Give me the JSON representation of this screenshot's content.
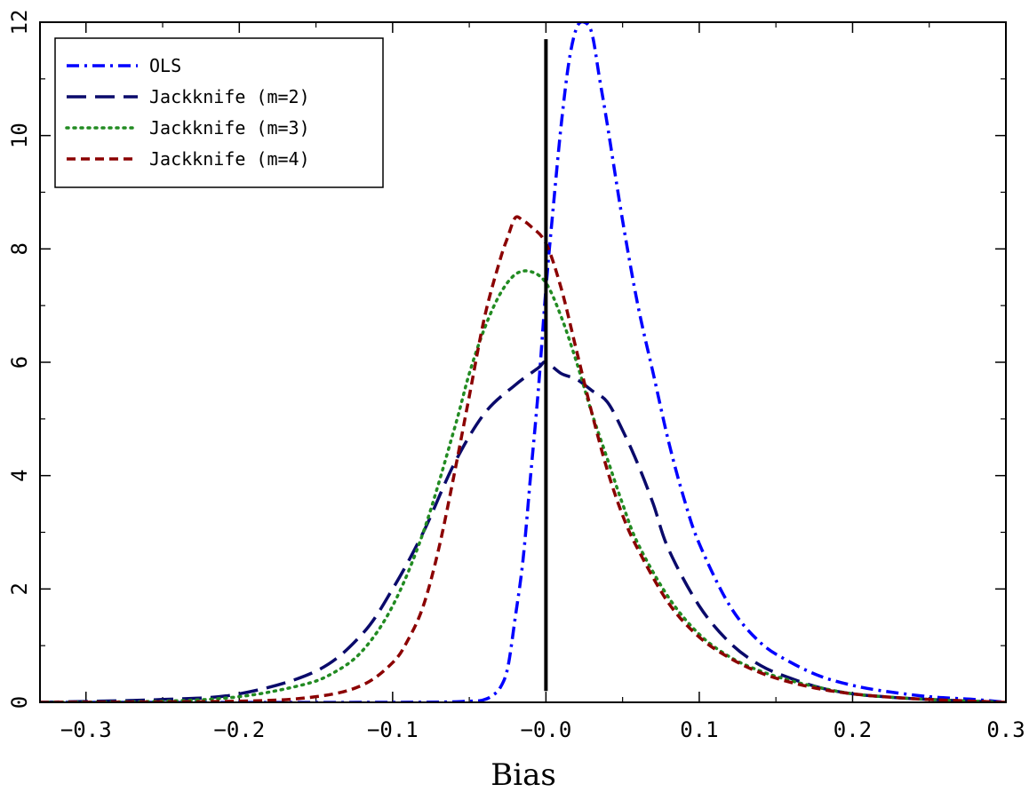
{
  "chart_data": {
    "type": "line",
    "xlabel": "Bias",
    "ylabel": "",
    "xlim": [
      -0.33,
      0.3
    ],
    "ylim": [
      0,
      12
    ],
    "x_ticks": [
      -0.3,
      -0.2,
      -0.1,
      0.0,
      0.1,
      0.2,
      0.3
    ],
    "x_tick_labels": [
      "−0.3",
      "−0.2",
      "−0.1",
      "−0.0",
      "0.1",
      "0.2",
      "0.3"
    ],
    "y_ticks": [
      0,
      2,
      4,
      6,
      8,
      10,
      12
    ],
    "y_tick_labels": [
      "0",
      "2",
      "4",
      "6",
      "8",
      "10",
      "12"
    ],
    "legend_position": "top-left",
    "grid": false,
    "reference_line": {
      "x": 0.0,
      "y_range": [
        0.2,
        11.7
      ],
      "color": "#000000"
    },
    "series": [
      {
        "name": "OLS",
        "color": "#0000ff",
        "dash": "dashdot",
        "x": [
          -0.33,
          -0.1,
          -0.05,
          -0.04,
          -0.035,
          -0.03,
          -0.025,
          -0.02,
          -0.015,
          -0.01,
          -0.005,
          0.0,
          0.005,
          0.01,
          0.015,
          0.02,
          0.025,
          0.03,
          0.035,
          0.04,
          0.05,
          0.06,
          0.07,
          0.08,
          0.09,
          0.1,
          0.12,
          0.14,
          0.16,
          0.18,
          0.2,
          0.22,
          0.25,
          0.28,
          0.3
        ],
        "y": [
          0.0,
          0.0,
          0.02,
          0.05,
          0.12,
          0.25,
          0.6,
          1.5,
          2.5,
          4.0,
          5.5,
          7.3,
          8.8,
          10.2,
          11.3,
          11.9,
          12.0,
          11.8,
          11.0,
          10.2,
          8.5,
          7.0,
          5.8,
          4.6,
          3.6,
          2.8,
          1.7,
          1.05,
          0.7,
          0.45,
          0.3,
          0.2,
          0.1,
          0.05,
          0.0
        ]
      },
      {
        "name": "Jackknife (m=2)",
        "color": "#0a0a6b",
        "dash": "longdash",
        "x": [
          -0.33,
          -0.25,
          -0.2,
          -0.15,
          -0.12,
          -0.1,
          -0.08,
          -0.06,
          -0.04,
          -0.02,
          -0.005,
          0.0,
          0.01,
          0.02,
          0.03,
          0.04,
          0.05,
          0.06,
          0.07,
          0.08,
          0.1,
          0.12,
          0.14,
          0.16,
          0.18,
          0.2,
          0.22,
          0.25,
          0.3
        ],
        "y": [
          0.0,
          0.05,
          0.15,
          0.55,
          1.2,
          2.0,
          3.0,
          4.2,
          5.1,
          5.6,
          5.9,
          6.0,
          5.8,
          5.7,
          5.5,
          5.3,
          4.8,
          4.2,
          3.5,
          2.7,
          1.7,
          1.05,
          0.65,
          0.42,
          0.25,
          0.15,
          0.1,
          0.05,
          0.0
        ]
      },
      {
        "name": "Jackknife (m=3)",
        "color": "#228b22",
        "dash": "dotted",
        "x": [
          -0.33,
          -0.25,
          -0.2,
          -0.16,
          -0.14,
          -0.12,
          -0.1,
          -0.08,
          -0.06,
          -0.05,
          -0.04,
          -0.03,
          -0.02,
          -0.01,
          0.0,
          0.01,
          0.02,
          0.03,
          0.04,
          0.05,
          0.06,
          0.08,
          0.1,
          0.12,
          0.14,
          0.16,
          0.18,
          0.2,
          0.22,
          0.25,
          0.3
        ],
        "y": [
          0.0,
          0.02,
          0.1,
          0.3,
          0.5,
          0.9,
          1.7,
          3.0,
          4.8,
          5.8,
          6.6,
          7.2,
          7.55,
          7.6,
          7.4,
          6.8,
          6.0,
          5.1,
          4.3,
          3.5,
          2.8,
          1.85,
          1.2,
          0.8,
          0.55,
          0.38,
          0.25,
          0.15,
          0.1,
          0.05,
          0.0
        ]
      },
      {
        "name": "Jackknife (m=4)",
        "color": "#8b0000",
        "dash": "dashed",
        "x": [
          -0.33,
          -0.2,
          -0.15,
          -0.12,
          -0.1,
          -0.09,
          -0.08,
          -0.07,
          -0.06,
          -0.05,
          -0.04,
          -0.03,
          -0.025,
          -0.02,
          -0.015,
          -0.01,
          0.0,
          0.01,
          0.02,
          0.03,
          0.04,
          0.05,
          0.06,
          0.08,
          0.1,
          0.12,
          0.14,
          0.16,
          0.18,
          0.2,
          0.22,
          0.25,
          0.3
        ],
        "y": [
          0.0,
          0.02,
          0.1,
          0.3,
          0.7,
          1.1,
          1.7,
          2.7,
          4.0,
          5.4,
          6.8,
          7.8,
          8.2,
          8.55,
          8.5,
          8.4,
          8.1,
          7.3,
          6.2,
          5.1,
          4.1,
          3.3,
          2.7,
          1.75,
          1.15,
          0.78,
          0.52,
          0.35,
          0.23,
          0.15,
          0.1,
          0.05,
          0.0
        ]
      }
    ]
  }
}
